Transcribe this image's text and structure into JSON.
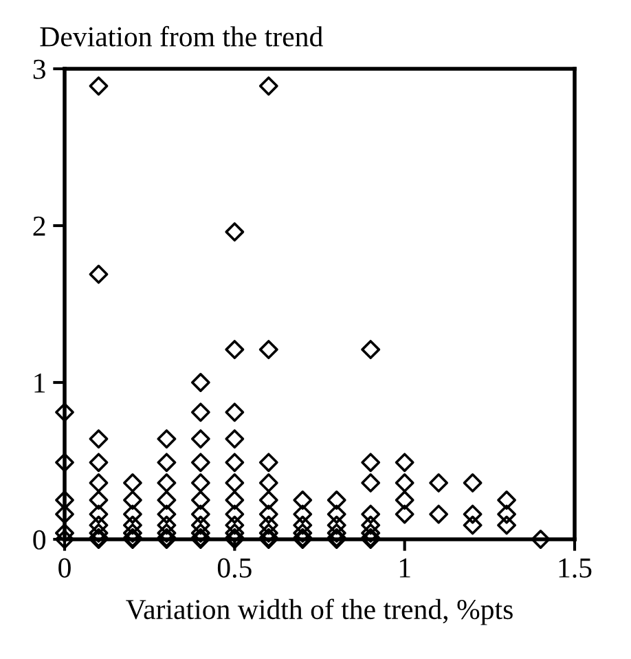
{
  "chart_data": {
    "type": "scatter",
    "ylabel": "Deviation from the trend",
    "xlabel": "Variation width of the trend, %pts",
    "x": [
      0,
      0,
      0,
      0,
      0,
      0,
      0.1,
      0.1,
      0.1,
      0.1,
      0.1,
      0.1,
      0.1,
      0.1,
      0.1,
      0.1,
      0.1,
      0.2,
      0.2,
      0.2,
      0.2,
      0.2,
      0.2,
      0.2,
      0.3,
      0.3,
      0.3,
      0.3,
      0.3,
      0.3,
      0.3,
      0.3,
      0.3,
      0.4,
      0.4,
      0.4,
      0.4,
      0.4,
      0.4,
      0.4,
      0.4,
      0.4,
      0.4,
      0.4,
      0.5,
      0.5,
      0.5,
      0.5,
      0.5,
      0.5,
      0.5,
      0.5,
      0.5,
      0.5,
      0.5,
      0.5,
      0.6,
      0.6,
      0.6,
      0.6,
      0.6,
      0.6,
      0.6,
      0.6,
      0.6,
      0.6,
      0.7,
      0.7,
      0.7,
      0.7,
      0.7,
      0.7,
      0.8,
      0.8,
      0.8,
      0.8,
      0.8,
      0.8,
      0.9,
      0.9,
      0.9,
      0.9,
      0.9,
      0.9,
      0.9,
      0.9,
      1.0,
      1.0,
      1.0,
      1.0,
      1.1,
      1.1,
      1.2,
      1.2,
      1.2,
      1.3,
      1.3,
      1.3,
      1.4
    ],
    "series": [
      {
        "color": "#000000",
        "values": [
          0.81,
          0.49,
          0.25,
          0.16,
          0.04,
          0,
          2.89,
          1.69,
          0.64,
          0.49,
          0.36,
          0.25,
          0.16,
          0.09,
          0.04,
          0.01,
          0,
          0.36,
          0.25,
          0.16,
          0.09,
          0.04,
          0.01,
          0,
          0.64,
          0.49,
          0.36,
          0.25,
          0.16,
          0.09,
          0.04,
          0.01,
          0,
          1.0,
          0.81,
          0.64,
          0.49,
          0.36,
          0.25,
          0.16,
          0.09,
          0.04,
          0.01,
          0,
          1.96,
          1.21,
          0.81,
          0.64,
          0.49,
          0.36,
          0.25,
          0.16,
          0.09,
          0.04,
          0.01,
          0,
          2.89,
          1.21,
          0.49,
          0.36,
          0.25,
          0.16,
          0.09,
          0.04,
          0.01,
          0,
          0.25,
          0.16,
          0.09,
          0.04,
          0.01,
          0,
          0.25,
          0.16,
          0.09,
          0.04,
          0.01,
          0,
          1.21,
          0.49,
          0.36,
          0.16,
          0.09,
          0.04,
          0.01,
          0,
          0.49,
          0.36,
          0.25,
          0.16,
          0.36,
          0.16,
          0.36,
          0.16,
          0.09,
          0.25,
          0.16,
          0.09,
          0
        ]
      }
    ],
    "marker": "diamond",
    "xlim": [
      0,
      1.5
    ],
    "ylim": [
      0,
      3
    ],
    "xticks": [
      0,
      0.5,
      1,
      1.5
    ],
    "yticks": [
      0,
      1,
      2,
      3
    ],
    "grid": false,
    "legend": false
  }
}
